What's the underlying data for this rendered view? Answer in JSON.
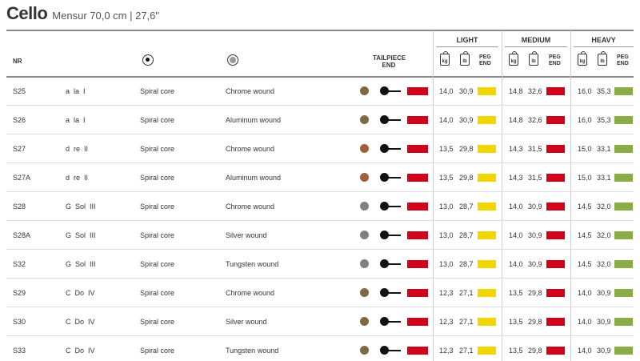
{
  "title": {
    "main": "Cello",
    "sub": "Mensur 70,0 cm | 27,6\""
  },
  "headers": {
    "nr": "NR",
    "tailpiece_end": "TAILPIECE END",
    "tailpiece_end_l1": "TAILPIECE",
    "tailpiece_end_l2": "END",
    "core_icon": "core-icon",
    "wound_icon": "wound-icon"
  },
  "groups": [
    {
      "label": "LIGHT",
      "kg": "kg",
      "lb": "lb",
      "peg_l1": "PEG",
      "peg_l2": "END"
    },
    {
      "label": "MEDIUM",
      "kg": "kg",
      "lb": "lb",
      "peg_l1": "PEG",
      "peg_l2": "END"
    },
    {
      "label": "HEAVY",
      "kg": "kg",
      "lb": "lb",
      "peg_l1": "PEG",
      "peg_l2": "END"
    }
  ],
  "colors": {
    "tailpiece_red": "#d0021b",
    "light_yellow": "#f2d600",
    "medium_red": "#d0021b",
    "heavy_green": "#8aad45"
  },
  "rows": [
    {
      "nr": "S25",
      "note": "a  la  I",
      "core": "Spiral core",
      "wound": "Chrome wound",
      "dot": "#7a6a45",
      "light": {
        "kg": "14,0",
        "lb": "30,9"
      },
      "medium": {
        "kg": "14,8",
        "lb": "32,6"
      },
      "heavy": {
        "kg": "16,0",
        "lb": "35,3"
      }
    },
    {
      "nr": "S26",
      "note": "a  la  I",
      "core": "Spiral core",
      "wound": "Aluminum wound",
      "dot": "#7a6a45",
      "light": {
        "kg": "14,0",
        "lb": "30,9"
      },
      "medium": {
        "kg": "14,8",
        "lb": "32,6"
      },
      "heavy": {
        "kg": "16,0",
        "lb": "35,3"
      }
    },
    {
      "nr": "S27",
      "note": "d  re  II",
      "core": "Spiral core",
      "wound": "Chrome wound",
      "dot": "#a0603a",
      "light": {
        "kg": "13,5",
        "lb": "29,8"
      },
      "medium": {
        "kg": "14,3",
        "lb": "31,5"
      },
      "heavy": {
        "kg": "15,0",
        "lb": "33,1"
      }
    },
    {
      "nr": "S27A",
      "note": "d  re  II",
      "core": "Spiral core",
      "wound": "Aluminum wound",
      "dot": "#a0603a",
      "light": {
        "kg": "13,5",
        "lb": "29,8"
      },
      "medium": {
        "kg": "14,3",
        "lb": "31,5"
      },
      "heavy": {
        "kg": "15,0",
        "lb": "33,1"
      }
    },
    {
      "nr": "S28",
      "note": "G  Sol  III",
      "core": "Spiral core",
      "wound": "Chrome wound",
      "dot": "#808080",
      "light": {
        "kg": "13,0",
        "lb": "28,7"
      },
      "medium": {
        "kg": "14,0",
        "lb": "30,9"
      },
      "heavy": {
        "kg": "14,5",
        "lb": "32,0"
      }
    },
    {
      "nr": "S28A",
      "note": "G  Sol  III",
      "core": "Spiral core",
      "wound": "Silver wound",
      "dot": "#808080",
      "light": {
        "kg": "13,0",
        "lb": "28,7"
      },
      "medium": {
        "kg": "14,0",
        "lb": "30,9"
      },
      "heavy": {
        "kg": "14,5",
        "lb": "32,0"
      }
    },
    {
      "nr": "S32",
      "note": "G  Sol  III",
      "core": "Spiral core",
      "wound": "Tungsten wound",
      "dot": "#808080",
      "light": {
        "kg": "13,0",
        "lb": "28,7"
      },
      "medium": {
        "kg": "14,0",
        "lb": "30,9"
      },
      "heavy": {
        "kg": "14,5",
        "lb": "32,0"
      }
    },
    {
      "nr": "S29",
      "note": "C  Do  IV",
      "core": "Spiral core",
      "wound": "Chrome wound",
      "dot": "#7a6a45",
      "light": {
        "kg": "12,3",
        "lb": "27,1"
      },
      "medium": {
        "kg": "13,5",
        "lb": "29,8"
      },
      "heavy": {
        "kg": "14,0",
        "lb": "30,9"
      }
    },
    {
      "nr": "S30",
      "note": "C  Do  IV",
      "core": "Spiral core",
      "wound": "Silver wound",
      "dot": "#7a6a45",
      "light": {
        "kg": "12,3",
        "lb": "27,1"
      },
      "medium": {
        "kg": "13,5",
        "lb": "29,8"
      },
      "heavy": {
        "kg": "14,0",
        "lb": "30,9"
      }
    },
    {
      "nr": "S33",
      "note": "C  Do  IV",
      "core": "Spiral core",
      "wound": "Tungsten wound",
      "dot": "#7a6a45",
      "light": {
        "kg": "12,3",
        "lb": "27,1"
      },
      "medium": {
        "kg": "13,5",
        "lb": "29,8"
      },
      "heavy": {
        "kg": "14,0",
        "lb": "30,9"
      }
    }
  ]
}
